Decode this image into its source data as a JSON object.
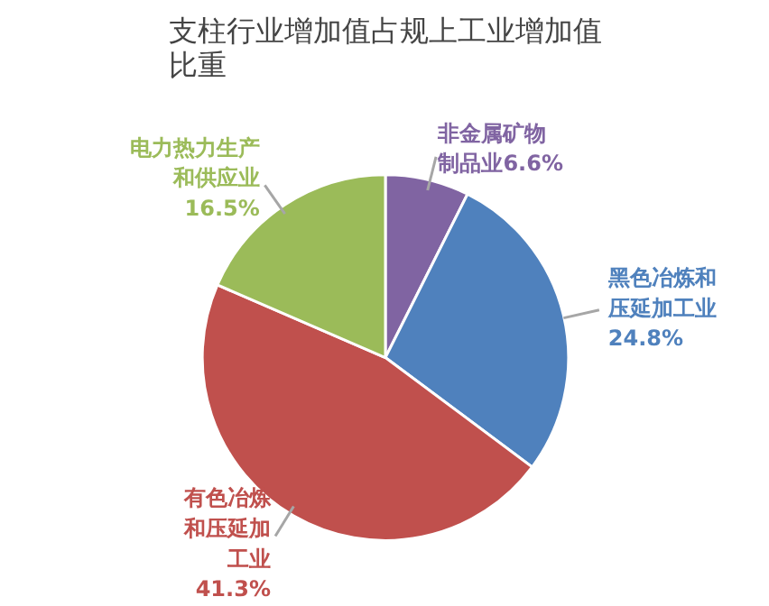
{
  "chart_data": {
    "type": "pie",
    "title": "支柱行业增加值占规上工业增加值比重",
    "categories": [
      "非金属矿物制品业",
      "黑色冶炼和压延加工业",
      "有色冶炼和压延加工业",
      "电力热力生产和供应业"
    ],
    "values": [
      6.6,
      24.8,
      41.3,
      16.5
    ],
    "colors": [
      "#8064a2",
      "#4f81bd",
      "#c0504d",
      "#9bbb59"
    ],
    "value_labels": [
      "6.6%",
      "24.8%",
      "41.3%",
      "16.5%"
    ],
    "legend": false
  }
}
